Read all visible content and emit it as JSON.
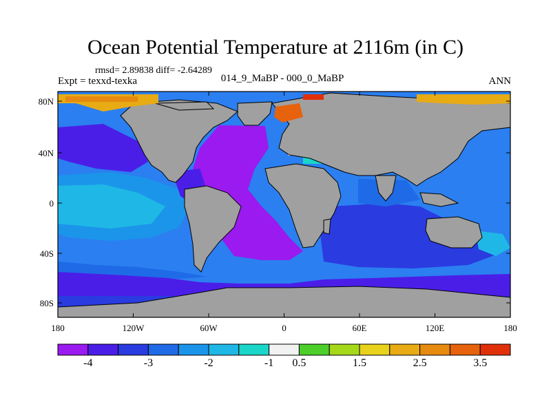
{
  "title": "Ocean Potential Temperature at 2116m (in C)",
  "stats": "rmsd= 2.89838 diff= -2.64289",
  "experiment": "Expt = texxd-texka",
  "case": "014_9_MaBP - 000_0_MaBP",
  "season": "ANN",
  "colors": {
    "land": "#a0a0a0",
    "coast": "#000000",
    "ocean_base": "#2b7ff0"
  },
  "map": {
    "lon_ticks": [
      "180",
      "120W",
      "60W",
      "0",
      "60E",
      "120E",
      "180"
    ],
    "lat_ticks": [
      "80N",
      "40N",
      "0",
      "40S",
      "80S"
    ],
    "lon_range": [
      -180,
      180
    ],
    "lat_range": [
      -90,
      90
    ]
  },
  "colorbar": {
    "colors": [
      "#9a1af0",
      "#4b1ee8",
      "#2a3be0",
      "#1f6ae6",
      "#1b95ea",
      "#1fb8e6",
      "#1ad6c8",
      "#f2f2f2",
      "#4ccf2a",
      "#a6d81a",
      "#e8d21c",
      "#e8ab14",
      "#e68a10",
      "#e6620c",
      "#e0300a"
    ],
    "labels": [
      "-4",
      "-3",
      "-2",
      "-1",
      "0.5",
      "1.5",
      "2.5",
      "3.5"
    ]
  }
}
